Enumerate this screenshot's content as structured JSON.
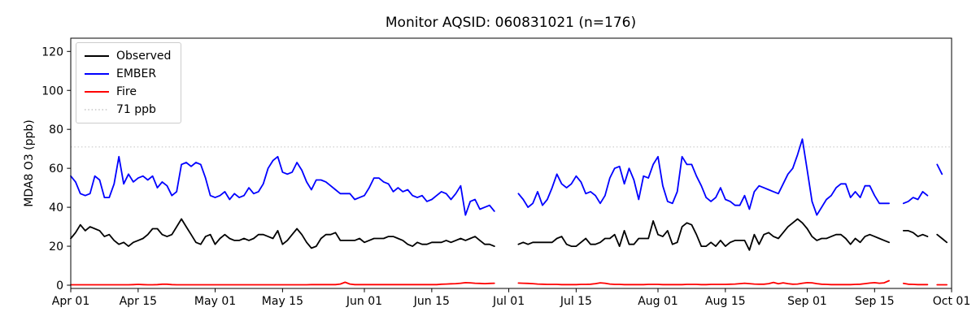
{
  "title": "Monitor AQSID: 060831021 (n=176)",
  "chart_data": {
    "type": "line",
    "title": "Monitor AQSID: 060831021 (n=176)",
    "xlabel": "",
    "ylabel": "MDA8 O3 (ppb)",
    "ylim": [
      0,
      125
    ],
    "grid": false,
    "legend_position": "upper left",
    "x_unit": "daily values, Apr 01 through Sep 30",
    "x_tick_labels": [
      "Apr 01",
      "Apr 15",
      "May 01",
      "May 15",
      "Jun 01",
      "Jun 15",
      "Jul 01",
      "Jul 15",
      "Aug 01",
      "Aug 15",
      "Sep 01",
      "Sep 15",
      "Oct 01"
    ],
    "x_tick_days": [
      0,
      14,
      30,
      44,
      61,
      75,
      91,
      105,
      122,
      136,
      153,
      167,
      183
    ],
    "y_ticks": [
      0,
      20,
      40,
      60,
      80,
      100,
      120
    ],
    "reference_line": {
      "label": "71 ppb",
      "value": 71,
      "color": "#d3d3d3",
      "style": "dotted"
    },
    "missing_days": [
      "Jun 29",
      "Jun 30",
      "Jul 01",
      "Jul 02",
      "Sep 19",
      "Sep 20",
      "Sep 27"
    ],
    "series": [
      {
        "name": "Observed",
        "color": "#000000",
        "values": [
          24,
          27,
          31,
          28,
          30,
          29,
          28,
          25,
          26,
          23,
          21,
          22,
          20,
          22,
          23,
          24,
          26,
          29,
          29,
          26,
          25,
          26,
          30,
          34,
          30,
          26,
          22,
          21,
          25,
          26,
          21,
          24,
          26,
          24,
          23,
          23,
          24,
          23,
          24,
          26,
          26,
          25,
          24,
          28,
          21,
          23,
          26,
          29,
          26,
          22,
          19,
          20,
          24,
          26,
          26,
          27,
          23,
          23,
          23,
          23,
          24,
          22,
          23,
          24,
          24,
          24,
          25,
          25,
          24,
          23,
          21,
          20,
          22,
          21,
          21,
          22,
          22,
          22,
          23,
          22,
          23,
          24,
          23,
          24,
          25,
          23,
          21,
          21,
          20,
          null,
          null,
          null,
          null,
          21,
          22,
          21,
          22,
          22,
          22,
          22,
          22,
          24,
          25,
          21,
          20,
          20,
          22,
          24,
          21,
          21,
          22,
          24,
          24,
          26,
          20,
          28,
          21,
          21,
          24,
          24,
          24,
          33,
          26,
          25,
          28,
          21,
          22,
          30,
          32,
          31,
          26,
          20,
          20,
          22,
          20,
          23,
          20,
          22,
          23,
          23,
          23,
          18,
          26,
          21,
          26,
          27,
          25,
          24,
          27,
          30,
          32,
          34,
          32,
          29,
          25,
          23,
          24,
          24,
          25,
          26,
          26,
          24,
          21,
          24,
          22,
          25,
          26,
          25,
          24,
          23,
          22,
          null,
          null,
          28,
          28,
          27,
          25,
          26,
          25,
          null,
          26,
          24,
          22
        ]
      },
      {
        "name": "EMBER",
        "color": "#0000ff",
        "values": [
          56,
          53,
          47,
          46,
          47,
          56,
          54,
          45,
          45,
          52,
          66,
          52,
          57,
          53,
          55,
          56,
          54,
          56,
          50,
          53,
          51,
          46,
          48,
          62,
          63,
          61,
          63,
          62,
          55,
          46,
          45,
          46,
          48,
          44,
          47,
          45,
          46,
          50,
          47,
          48,
          52,
          60,
          64,
          66,
          58,
          57,
          58,
          63,
          59,
          53,
          49,
          54,
          54,
          53,
          51,
          49,
          47,
          47,
          47,
          44,
          45,
          46,
          50,
          55,
          55,
          53,
          52,
          48,
          50,
          48,
          49,
          46,
          45,
          46,
          43,
          44,
          46,
          48,
          47,
          44,
          47,
          51,
          36,
          43,
          44,
          39,
          40,
          41,
          38,
          null,
          null,
          null,
          null,
          47,
          44,
          40,
          42,
          48,
          41,
          44,
          50,
          57,
          52,
          50,
          52,
          56,
          53,
          47,
          48,
          46,
          42,
          46,
          55,
          60,
          61,
          52,
          60,
          54,
          44,
          56,
          55,
          62,
          66,
          51,
          43,
          42,
          48,
          66,
          62,
          62,
          56,
          51,
          45,
          43,
          45,
          50,
          44,
          43,
          41,
          41,
          46,
          39,
          48,
          51,
          50,
          49,
          48,
          47,
          52,
          57,
          60,
          67,
          75,
          59,
          43,
          36,
          40,
          44,
          46,
          50,
          52,
          52,
          45,
          48,
          45,
          51,
          51,
          46,
          42,
          42,
          42,
          null,
          null,
          42,
          43,
          45,
          44,
          48,
          46,
          null,
          62,
          57,
          null
        ]
      },
      {
        "name": "Fire",
        "color": "#ff0000",
        "values": [
          0.2,
          0.2,
          0.2,
          0.2,
          0.2,
          0.2,
          0.2,
          0.2,
          0.2,
          0.2,
          0.2,
          0.2,
          0.2,
          0.3,
          0.4,
          0.3,
          0.2,
          0.2,
          0.3,
          0.5,
          0.5,
          0.3,
          0.2,
          0.2,
          0.2,
          0.2,
          0.2,
          0.2,
          0.2,
          0.2,
          0.2,
          0.2,
          0.2,
          0.2,
          0.2,
          0.2,
          0.2,
          0.2,
          0.2,
          0.2,
          0.2,
          0.2,
          0.2,
          0.2,
          0.2,
          0.2,
          0.2,
          0.2,
          0.2,
          0.2,
          0.3,
          0.3,
          0.3,
          0.3,
          0.3,
          0.3,
          0.6,
          1.5,
          0.6,
          0.3,
          0.3,
          0.3,
          0.3,
          0.3,
          0.3,
          0.3,
          0.3,
          0.3,
          0.3,
          0.3,
          0.3,
          0.3,
          0.3,
          0.3,
          0.3,
          0.3,
          0.3,
          0.5,
          0.6,
          0.7,
          0.8,
          1.0,
          1.3,
          1.2,
          1.0,
          0.9,
          0.8,
          0.9,
          1.0,
          null,
          null,
          null,
          null,
          1.1,
          1.0,
          0.9,
          0.8,
          0.6,
          0.5,
          0.4,
          0.4,
          0.4,
          0.3,
          0.3,
          0.3,
          0.3,
          0.4,
          0.4,
          0.5,
          0.8,
          1.2,
          1.0,
          0.6,
          0.4,
          0.4,
          0.3,
          0.3,
          0.3,
          0.3,
          0.3,
          0.4,
          0.4,
          0.4,
          0.3,
          0.3,
          0.3,
          0.3,
          0.3,
          0.4,
          0.4,
          0.4,
          0.3,
          0.3,
          0.4,
          0.4,
          0.4,
          0.4,
          0.5,
          0.6,
          0.8,
          1.0,
          0.8,
          0.6,
          0.5,
          0.5,
          0.8,
          1.4,
          0.7,
          1.2,
          0.8,
          0.5,
          0.6,
          1.0,
          1.3,
          1.2,
          0.8,
          0.5,
          0.4,
          0.3,
          0.3,
          0.3,
          0.3,
          0.3,
          0.4,
          0.5,
          0.8,
          1.1,
          1.3,
          1.0,
          1.2,
          2.3,
          null,
          null,
          0.9,
          0.5,
          0.4,
          0.3,
          0.3,
          0.3,
          null,
          0.2,
          0.2,
          0.2
        ]
      }
    ]
  }
}
